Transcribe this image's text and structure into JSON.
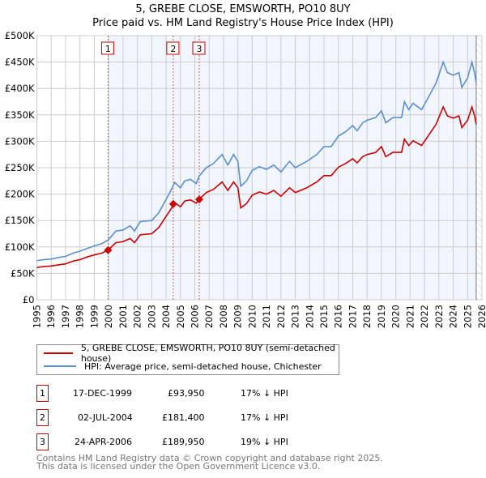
{
  "chart_data": {
    "type": "line",
    "title": "5, GREBE CLOSE, EMSWORTH, PO10 8UY",
    "subtitle": "Price paid vs. HM Land Registry's House Price Index (HPI)",
    "xlim": [
      1995,
      2026
    ],
    "ylim": [
      0,
      500000
    ],
    "x_ticks": [
      "1995",
      "1996",
      "1997",
      "1998",
      "1999",
      "2000",
      "2001",
      "2002",
      "2003",
      "2004",
      "2005",
      "2006",
      "2007",
      "2008",
      "2009",
      "2010",
      "2011",
      "2012",
      "2013",
      "2014",
      "2015",
      "2016",
      "2017",
      "2018",
      "2019",
      "2020",
      "2021",
      "2022",
      "2023",
      "2024",
      "2025",
      "2026"
    ],
    "y_ticks": [
      {
        "v": 0,
        "label": "£0"
      },
      {
        "v": 50000,
        "label": "£50K"
      },
      {
        "v": 100000,
        "label": "£100K"
      },
      {
        "v": 150000,
        "label": "£150K"
      },
      {
        "v": 200000,
        "label": "£200K"
      },
      {
        "v": 250000,
        "label": "£250K"
      },
      {
        "v": 300000,
        "label": "£300K"
      },
      {
        "v": 350000,
        "label": "£350K"
      },
      {
        "v": 400000,
        "label": "£400K"
      },
      {
        "v": 450000,
        "label": "£450K"
      },
      {
        "v": 500000,
        "label": "£500K"
      }
    ],
    "grid": true,
    "x": [
      1995,
      1995.5,
      1996,
      1996.5,
      1997,
      1997.5,
      1998,
      1998.5,
      1999,
      1999.5,
      1999.96,
      2000.5,
      2001,
      2001.5,
      2001.8,
      2002.2,
      2003,
      2003.5,
      2004,
      2004.3,
      2004.6,
      2005,
      2005.3,
      2005.7,
      2006.1,
      2006.3,
      2006.8,
      2007.3,
      2007.9,
      2008.3,
      2008.7,
      2009.0,
      2009.2,
      2009.6,
      2010,
      2010.5,
      2011,
      2011.5,
      2012,
      2012.6,
      2013,
      2013.8,
      2014.5,
      2015,
      2015.5,
      2016,
      2016.5,
      2017,
      2017.3,
      2017.7,
      2018,
      2018.6,
      2019,
      2019.3,
      2019.8,
      2020.4,
      2020.6,
      2020.9,
      2021.2,
      2021.8,
      2022.3,
      2022.8,
      2023.3,
      2023.6,
      2024,
      2024.4,
      2024.6,
      2025.0,
      2025.3,
      2025.5,
      2025.6
    ],
    "series": [
      {
        "name": "5, GREBE CLOSE, EMSWORTH, PO10 8UY (semi-detached house)",
        "color": "#cc0000",
        "values": [
          61,
          63,
          64,
          66,
          68,
          73,
          76,
          81,
          85,
          88,
          94,
          108,
          110,
          116,
          108,
          123,
          125,
          137,
          158,
          170,
          184,
          176,
          187,
          189,
          183,
          190,
          203,
          209,
          223,
          207,
          223,
          212,
          174,
          182,
          198,
          204,
          200,
          207,
          196,
          212,
          203,
          212,
          223,
          235,
          235,
          251,
          258,
          267,
          259,
          271,
          275,
          279,
          290,
          271,
          279,
          279,
          304,
          292,
          301,
          292,
          312,
          332,
          365,
          348,
          344,
          348,
          326,
          340,
          365,
          347,
          332
        ]
      },
      {
        "name": "HPI: Average price, semi-detached house, Chichester",
        "color": "#5b8fd0",
        "values": [
          74,
          76,
          77,
          80,
          82,
          88,
          92,
          97,
          102,
          106,
          113,
          130,
          132,
          140,
          130,
          148,
          150,
          165,
          190,
          205,
          222,
          212,
          225,
          228,
          220,
          234,
          250,
          258,
          275,
          255,
          275,
          262,
          215,
          225,
          245,
          252,
          247,
          255,
          242,
          262,
          250,
          262,
          275,
          290,
          290,
          310,
          318,
          330,
          320,
          335,
          340,
          345,
          358,
          335,
          345,
          345,
          375,
          360,
          372,
          360,
          385,
          410,
          450,
          430,
          425,
          430,
          402,
          420,
          450,
          428,
          410
        ]
      }
    ],
    "value_unit": "thousands GBP",
    "data_end": 2025.6,
    "sales": [
      {
        "n": "1",
        "x": 1999.96,
        "price": 93950,
        "date": "17-DEC-1999",
        "price_label": "£93,950",
        "hpi": "17% ↓ HPI"
      },
      {
        "n": "2",
        "x": 2004.5,
        "price": 181400,
        "date": "02-JUL-2004",
        "price_label": "£181,400",
        "hpi": "17% ↓ HPI"
      },
      {
        "n": "3",
        "x": 2006.31,
        "price": 189950,
        "date": "24-APR-2006",
        "price_label": "£189,950",
        "hpi": "19% ↓ HPI"
      }
    ],
    "legend_placement": "bottom"
  },
  "footer": {
    "line1": "Contains HM Land Registry data © Crown copyright and database right 2025.",
    "line2": "This data is licensed under the Open Government Licence v3.0."
  }
}
